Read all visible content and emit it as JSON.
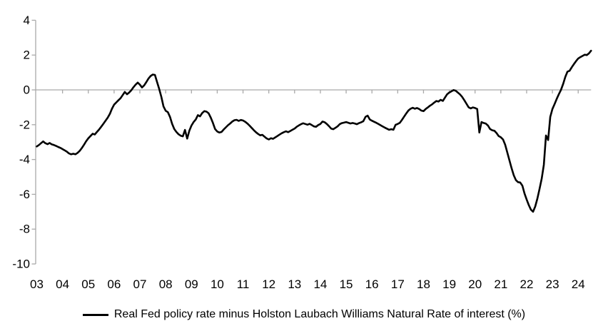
{
  "chart_data": {
    "type": "line",
    "title": "",
    "xlabel": "",
    "ylabel": "",
    "ylim": [
      -10,
      4
    ],
    "y_ticks": [
      4,
      2,
      0,
      -2,
      -4,
      -6,
      -8,
      -10
    ],
    "x_tick_labels": [
      "03",
      "04",
      "05",
      "06",
      "07",
      "08",
      "09",
      "10",
      "11",
      "12",
      "13",
      "14",
      "15",
      "16",
      "17",
      "18",
      "19",
      "20",
      "21",
      "22",
      "23",
      "24"
    ],
    "x_start": "2003-01",
    "x_end": "2024-07",
    "x_frequency": "monthly",
    "grid": "zero-line-only",
    "legend_position": "bottom-center",
    "colors": {
      "series": "#000000",
      "axis": "#a9a9a9",
      "labels": "#000000"
    },
    "series": [
      {
        "name": "Real Fed policy rate minus Holston Laubach Williams Natural Rate of interest (%)",
        "values": [
          -3.25,
          -3.17,
          -3.06,
          -2.96,
          -3.06,
          -3.12,
          -3.05,
          -3.13,
          -3.17,
          -3.22,
          -3.28,
          -3.33,
          -3.4,
          -3.47,
          -3.55,
          -3.65,
          -3.7,
          -3.67,
          -3.7,
          -3.62,
          -3.5,
          -3.34,
          -3.15,
          -2.95,
          -2.78,
          -2.65,
          -2.52,
          -2.56,
          -2.42,
          -2.28,
          -2.12,
          -1.95,
          -1.78,
          -1.6,
          -1.38,
          -1.08,
          -0.85,
          -0.72,
          -0.6,
          -0.48,
          -0.3,
          -0.12,
          -0.25,
          -0.15,
          -0.02,
          0.15,
          0.3,
          0.42,
          0.3,
          0.14,
          0.26,
          0.45,
          0.65,
          0.8,
          0.88,
          0.86,
          0.45,
          0.05,
          -0.4,
          -0.95,
          -1.2,
          -1.28,
          -1.55,
          -1.95,
          -2.25,
          -2.42,
          -2.55,
          -2.63,
          -2.67,
          -2.3,
          -2.8,
          -2.35,
          -2.05,
          -1.85,
          -1.7,
          -1.45,
          -1.52,
          -1.33,
          -1.22,
          -1.25,
          -1.35,
          -1.6,
          -1.9,
          -2.25,
          -2.39,
          -2.45,
          -2.42,
          -2.28,
          -2.15,
          -2.03,
          -1.93,
          -1.82,
          -1.74,
          -1.72,
          -1.78,
          -1.73,
          -1.76,
          -1.83,
          -1.93,
          -2.05,
          -2.18,
          -2.31,
          -2.43,
          -2.53,
          -2.61,
          -2.58,
          -2.69,
          -2.79,
          -2.85,
          -2.78,
          -2.81,
          -2.73,
          -2.65,
          -2.57,
          -2.49,
          -2.43,
          -2.38,
          -2.43,
          -2.36,
          -2.29,
          -2.22,
          -2.12,
          -2.04,
          -1.97,
          -1.92,
          -1.96,
          -2.0,
          -1.95,
          -2.02,
          -2.1,
          -2.12,
          -2.02,
          -1.96,
          -1.82,
          -1.86,
          -1.96,
          -2.08,
          -2.22,
          -2.26,
          -2.18,
          -2.1,
          -1.97,
          -1.91,
          -1.88,
          -1.85,
          -1.89,
          -1.93,
          -1.9,
          -1.93,
          -1.97,
          -1.91,
          -1.86,
          -1.8,
          -1.55,
          -1.48,
          -1.7,
          -1.77,
          -1.83,
          -1.89,
          -1.96,
          -2.03,
          -2.1,
          -2.17,
          -2.23,
          -2.29,
          -2.26,
          -2.29,
          -2.01,
          -1.96,
          -1.89,
          -1.72,
          -1.53,
          -1.35,
          -1.18,
          -1.08,
          -1.03,
          -1.08,
          -1.04,
          -1.1,
          -1.19,
          -1.22,
          -1.1,
          -1.01,
          -0.91,
          -0.83,
          -0.73,
          -0.64,
          -0.67,
          -0.57,
          -0.63,
          -0.44,
          -0.25,
          -0.15,
          -0.08,
          -0.01,
          -0.05,
          -0.15,
          -0.26,
          -0.4,
          -0.6,
          -0.8,
          -1.0,
          -1.06,
          -1.01,
          -1.04,
          -1.1,
          -2.45,
          -1.85,
          -1.9,
          -1.94,
          -2.05,
          -2.25,
          -2.32,
          -2.35,
          -2.48,
          -2.65,
          -2.72,
          -2.85,
          -3.15,
          -3.6,
          -4.05,
          -4.5,
          -4.9,
          -5.18,
          -5.3,
          -5.32,
          -5.5,
          -5.95,
          -6.3,
          -6.62,
          -6.88,
          -7.0,
          -6.7,
          -6.25,
          -5.7,
          -5.1,
          -4.3,
          -2.62,
          -2.88,
          -1.55,
          -1.1,
          -0.82,
          -0.52,
          -0.25,
          0.0,
          0.35,
          0.75,
          1.05,
          1.1,
          1.3,
          1.48,
          1.65,
          1.8,
          1.88,
          1.95,
          2.02,
          2.0,
          2.1,
          2.25
        ]
      }
    ]
  }
}
